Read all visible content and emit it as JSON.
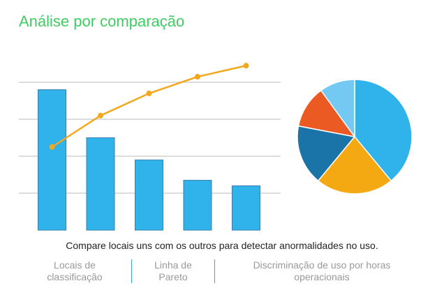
{
  "header": {
    "title": "Análise por comparação"
  },
  "colors": {
    "title": "#3fcd63",
    "bar": "#2fb3ea",
    "bar_stroke": "#3a7fae",
    "line": "#f2a81b",
    "grid": "#c8c8c8",
    "tab_divider": "#2fb5a5"
  },
  "chart_data": [
    {
      "type": "bar",
      "categories": [
        "",
        "",
        "",
        "",
        ""
      ],
      "series": [
        {
          "type": "bar",
          "values": [
            38,
            25,
            19,
            13.5,
            12
          ]
        },
        {
          "type": "line",
          "values": [
            22.5,
            31,
            37,
            41.5,
            44.5
          ]
        }
      ],
      "ylim": [
        0,
        50
      ],
      "grid": true,
      "title": "",
      "xlabel": "",
      "ylabel": ""
    },
    {
      "type": "pie",
      "slices": [
        {
          "value": 39,
          "color": "#2fb3ea"
        },
        {
          "value": 22,
          "color": "#f4a811"
        },
        {
          "value": 17,
          "color": "#1a74a8"
        },
        {
          "value": 12,
          "color": "#ec5a24"
        },
        {
          "value": 10,
          "color": "#73c9f2"
        }
      ]
    }
  ],
  "main": {
    "description": "Compare locais uns com os outros para detectar anormalidades no uso."
  },
  "tabs": [
    {
      "line1": "Locais de",
      "line2": "classificação"
    },
    {
      "line1": "Linha de",
      "line2": "Pareto"
    },
    {
      "line1": "Discriminação de uso por horas",
      "line2": "operacionais"
    }
  ]
}
